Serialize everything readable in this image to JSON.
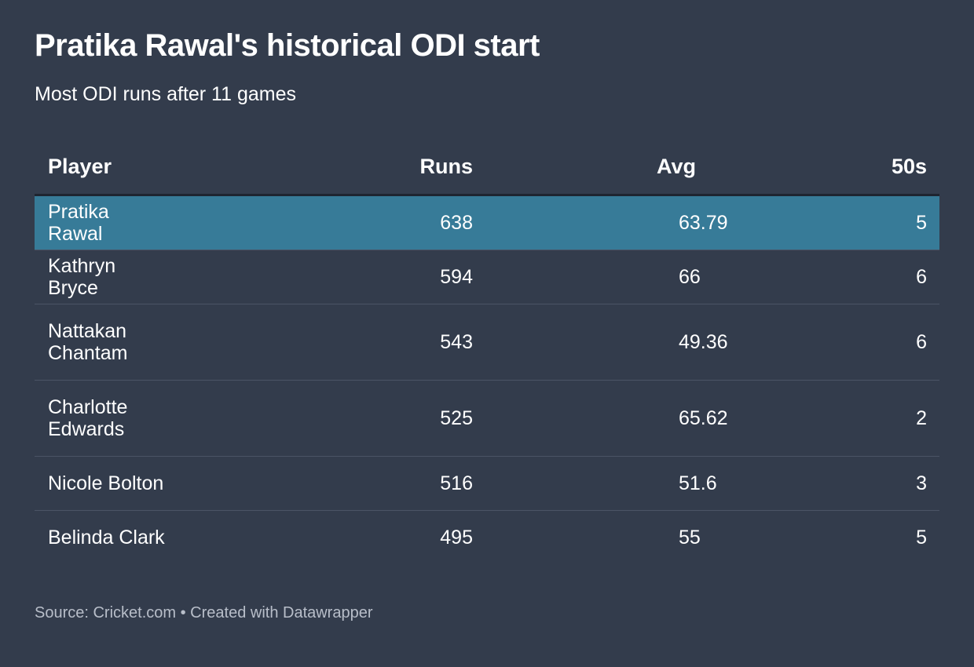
{
  "chart_data": {
    "type": "table",
    "title": "Pratika Rawal's historical ODI start",
    "subtitle": "Most ODI runs after 11 games",
    "columns": [
      "Player",
      "Runs",
      "Avg",
      "50s"
    ],
    "rows": [
      {
        "player": "Pratika Rawal",
        "runs": "638",
        "avg": "63.79",
        "fifties": "5",
        "highlighted": true
      },
      {
        "player": "Kathryn Bryce",
        "runs": "594",
        "avg": "66",
        "fifties": "6",
        "highlighted": false
      },
      {
        "player": "Nattakan Chantam",
        "runs": "543",
        "avg": "49.36",
        "fifties": "6",
        "highlighted": false
      },
      {
        "player": "Charlotte Edwards",
        "runs": "525",
        "avg": "65.62",
        "fifties": "2",
        "highlighted": false
      },
      {
        "player": "Nicole Bolton",
        "runs": "516",
        "avg": "51.6",
        "fifties": "3",
        "highlighted": false
      },
      {
        "player": "Belinda Clark",
        "runs": "495",
        "avg": "55",
        "fifties": "5",
        "highlighted": false
      }
    ],
    "footer": "Source: Cricket.com • Created with Datawrapper",
    "colors": {
      "background": "#333c4c",
      "highlight": "#377b98",
      "text": "#ffffff",
      "footer_text": "#b8bec9"
    }
  }
}
